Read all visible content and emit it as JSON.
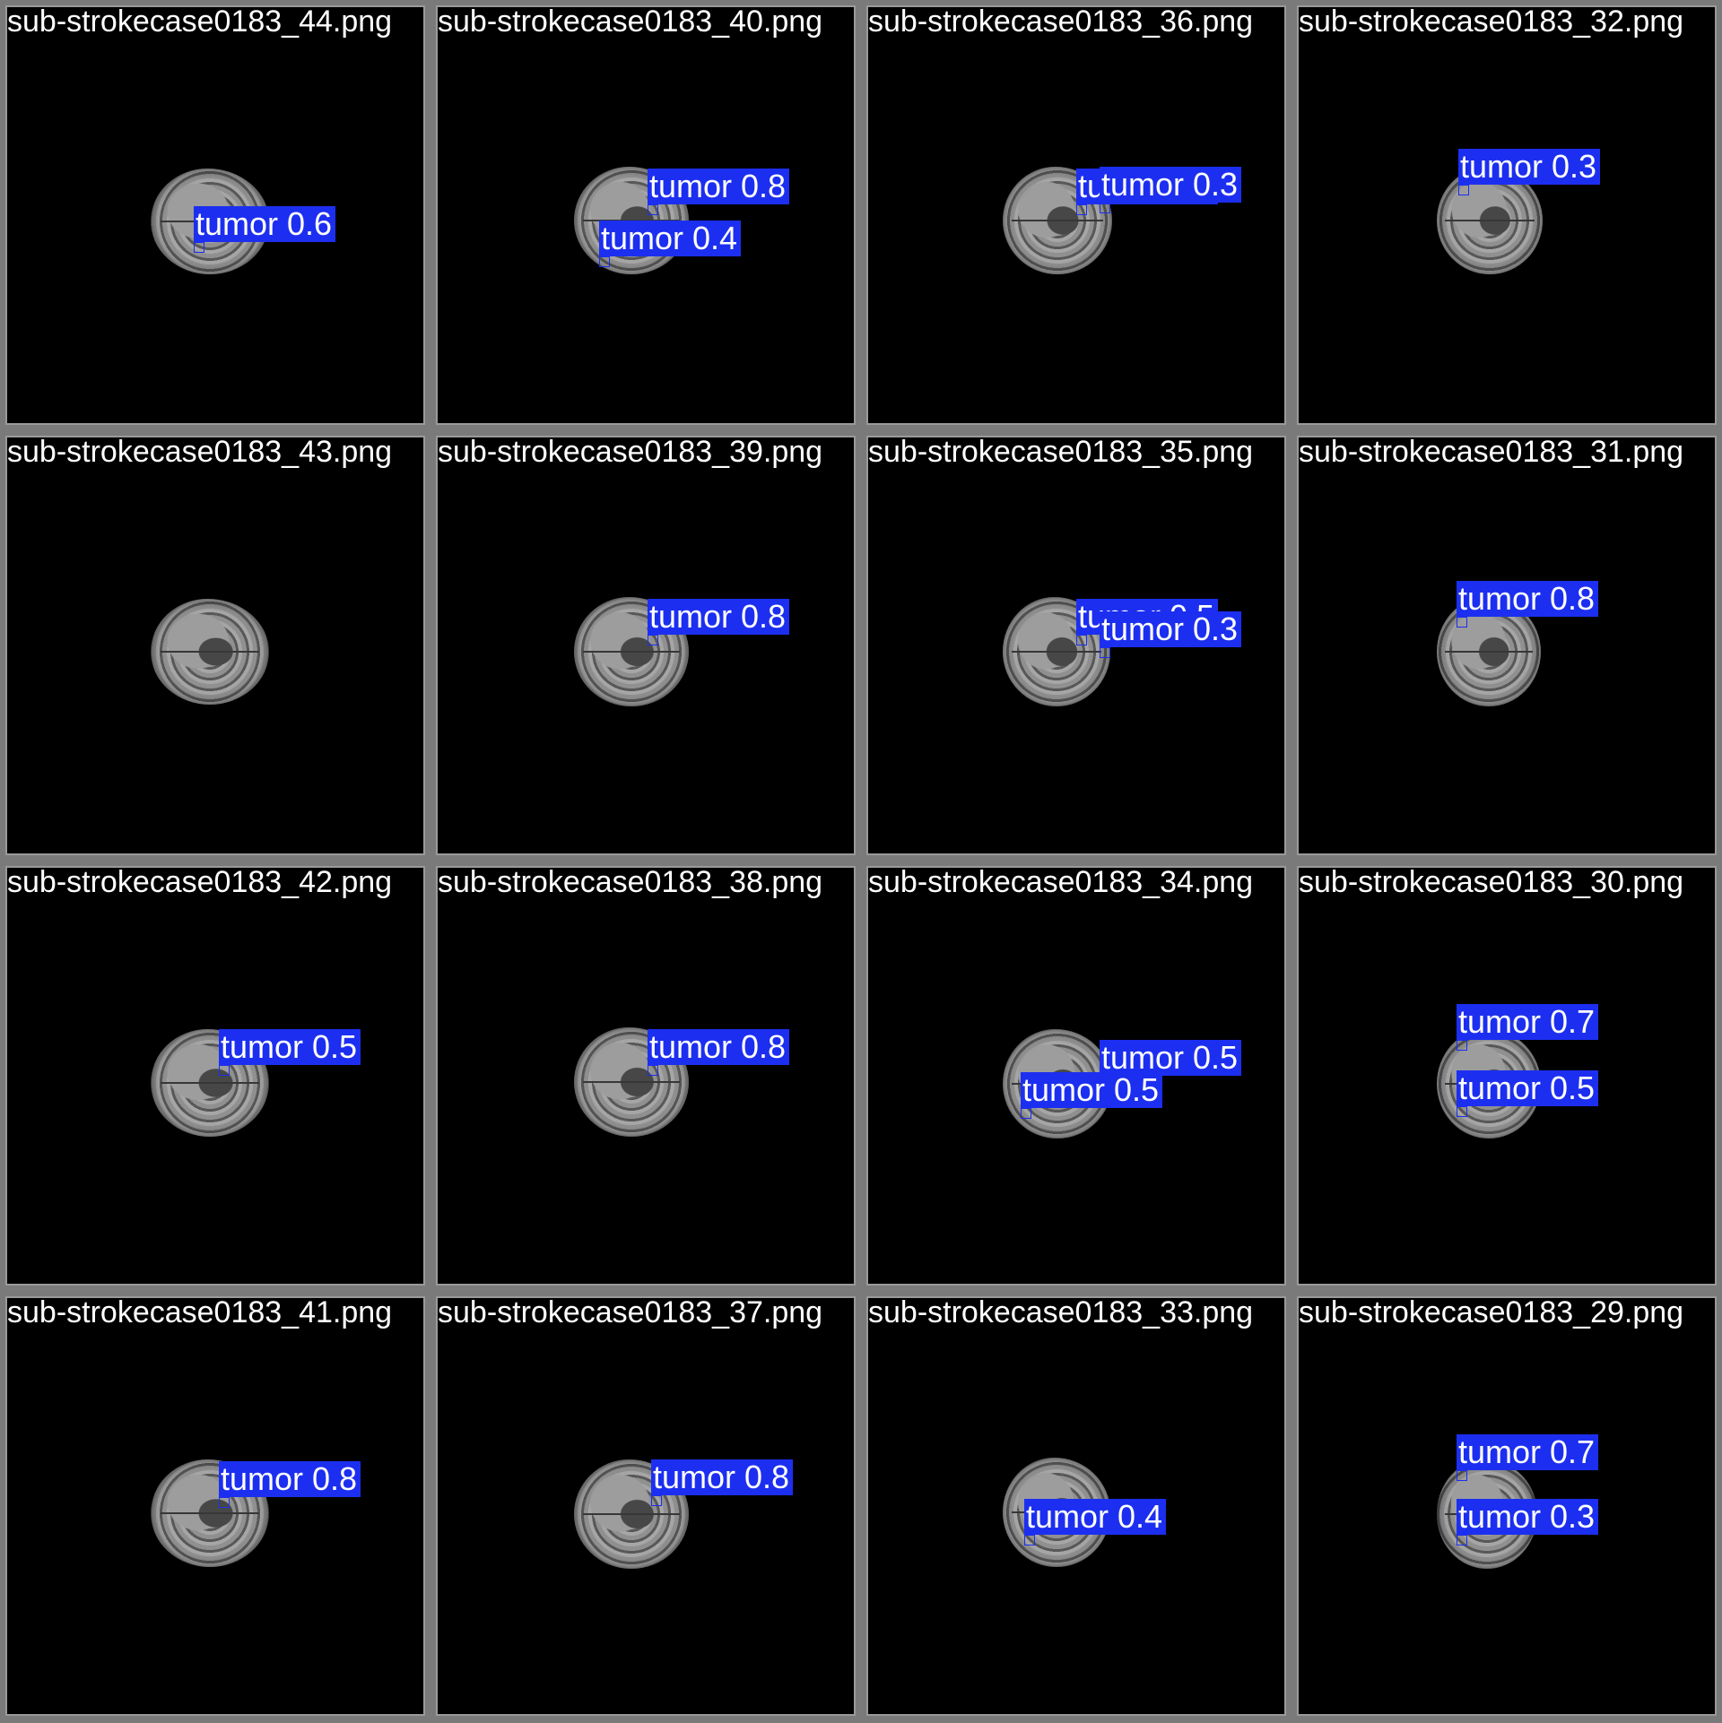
{
  "tiles": [
    {
      "title": "sub-strokecase0183_44.png",
      "detections": [
        {
          "label": "tumor 0.6"
        }
      ]
    },
    {
      "title": "sub-strokecase0183_40.png",
      "detections": [
        {
          "label": "tumor 0.8"
        },
        {
          "label": "tumor 0.4"
        }
      ]
    },
    {
      "title": "sub-strokecase0183_36.png",
      "detections": [
        {
          "label": "tumor 0.3"
        },
        {
          "label": "tumor 0.3"
        }
      ]
    },
    {
      "title": "sub-strokecase0183_32.png",
      "detections": [
        {
          "label": "tumor 0.3"
        }
      ]
    },
    {
      "title": "sub-strokecase0183_43.png",
      "detections": []
    },
    {
      "title": "sub-strokecase0183_39.png",
      "detections": [
        {
          "label": "tumor 0.8"
        }
      ]
    },
    {
      "title": "sub-strokecase0183_35.png",
      "detections": [
        {
          "label": "tumor 0.5"
        },
        {
          "label": "tumor 0.3"
        }
      ]
    },
    {
      "title": "sub-strokecase0183_31.png",
      "detections": [
        {
          "label": "tumor 0.8"
        }
      ]
    },
    {
      "title": "sub-strokecase0183_42.png",
      "detections": [
        {
          "label": "tumor 0.5"
        }
      ]
    },
    {
      "title": "sub-strokecase0183_38.png",
      "detections": [
        {
          "label": "tumor 0.8"
        }
      ]
    },
    {
      "title": "sub-strokecase0183_34.png",
      "detections": [
        {
          "label": "tumor 0.5"
        },
        {
          "label": "tumor 0.5"
        }
      ]
    },
    {
      "title": "sub-strokecase0183_30.png",
      "detections": [
        {
          "label": "tumor 0.7"
        },
        {
          "label": "tumor 0.5"
        }
      ]
    },
    {
      "title": "sub-strokecase0183_41.png",
      "detections": [
        {
          "label": "tumor 0.8"
        }
      ]
    },
    {
      "title": "sub-strokecase0183_37.png",
      "detections": [
        {
          "label": "tumor 0.8"
        }
      ]
    },
    {
      "title": "sub-strokecase0183_33.png",
      "detections": [
        {
          "label": "tumor 0.4"
        }
      ]
    },
    {
      "title": "sub-strokecase0183_29.png",
      "detections": [
        {
          "label": "tumor 0.7"
        },
        {
          "label": "tumor 0.3"
        }
      ]
    }
  ]
}
